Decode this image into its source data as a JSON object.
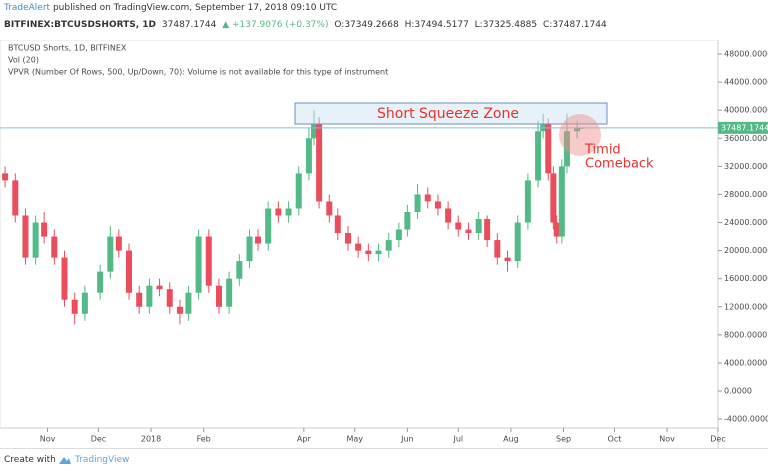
{
  "header": {
    "author": "TradeAlert",
    "published": "published on TradingView.com, September 17, 2018 09:10 UTC",
    "symbol": "BITFINEX:BTCUSDSHORTS, 1D",
    "last": "37487.1744",
    "change": "▲ +137.9076 (+0.37%)",
    "open": "O:37349.2668",
    "high": "H:37494.5177",
    "low": "L:37325.4885",
    "close": "C:37487.1744"
  },
  "footer": {
    "created": "Create with",
    "brand": "TradingView"
  },
  "chart_data": {
    "type": "candlestick",
    "title": "BTCUSD Shorts, 1D, BITFINEX",
    "legend_lines": [
      "Vol (20)",
      "VPVR (Number Of Rows, 500, Up/Down, 70): Volume is not available for this type of instrument"
    ],
    "up_color": "#53b987",
    "down_color": "#eb4d5c",
    "grid": false,
    "annotations": [
      "Short Squeeze Zone",
      "Timid",
      "Comeback"
    ],
    "xlim": [
      -3,
      420
    ],
    "xticks": [
      {
        "value": 25,
        "label": "Nov"
      },
      {
        "value": 55,
        "label": "Dec"
      },
      {
        "value": 86,
        "label": "2018"
      },
      {
        "value": 117,
        "label": "Feb"
      },
      {
        "value": 176,
        "label": "Apr"
      },
      {
        "value": 206,
        "label": "May"
      },
      {
        "value": 237,
        "label": "Jun"
      },
      {
        "value": 267,
        "label": "Jul"
      },
      {
        "value": 298,
        "label": "Aug"
      },
      {
        "value": 329,
        "label": "Sep"
      },
      {
        "value": 359,
        "label": "Oct"
      },
      {
        "value": 390,
        "label": "Nov"
      },
      {
        "value": 420,
        "label": "Dec"
      }
    ],
    "ylim": [
      -5270,
      50000
    ],
    "yticks": [
      {
        "value": -4000,
        "label": "-4000.0000"
      },
      {
        "value": 0,
        "label": "0.0000"
      },
      {
        "value": 4000,
        "label": "4000.0000"
      },
      {
        "value": 8000,
        "label": "8000.0000"
      },
      {
        "value": 12000,
        "label": "12000.0000"
      },
      {
        "value": 16000,
        "label": "16000.0000"
      },
      {
        "value": 20000,
        "label": "20000.0000"
      },
      {
        "value": 24000,
        "label": "24000.0000"
      },
      {
        "value": 28000,
        "label": "28000.0000"
      },
      {
        "value": 32000,
        "label": "32000.0000"
      },
      {
        "value": 36000,
        "label": "36000.0000"
      },
      {
        "value": 40000,
        "label": "40000.0000"
      },
      {
        "value": 44000,
        "label": "44000.0000"
      },
      {
        "value": 48000,
        "label": "48000.0000"
      }
    ],
    "x": [
      0,
      6,
      12,
      18,
      23,
      29,
      35,
      41,
      47,
      56,
      62,
      67,
      73,
      79,
      85,
      91,
      97,
      103,
      108,
      114,
      120,
      126,
      132,
      138,
      144,
      149,
      155,
      161,
      167,
      173,
      179,
      182,
      185,
      191,
      196,
      202,
      208,
      214,
      220,
      226,
      232,
      237,
      243,
      249,
      255,
      261,
      267,
      273,
      279,
      284,
      290,
      296,
      302,
      308,
      314,
      317,
      320,
      323,
      325,
      328,
      331,
      337,
      339
    ],
    "open": [
      31000,
      30000,
      25000,
      19000,
      24000,
      22000,
      19000,
      13000,
      11000,
      14000,
      17000,
      22000,
      20000,
      14000,
      12000,
      15000,
      14500,
      12000,
      11000,
      14000,
      22000,
      15000,
      12000,
      16000,
      18500,
      22000,
      21000,
      26000,
      25000,
      26000,
      31000,
      36000,
      38000,
      27000,
      25000,
      22500,
      21000,
      20000,
      19500,
      20000,
      21500,
      23000,
      25500,
      28000,
      27000,
      26000,
      24000,
      23000,
      22500,
      24500,
      21500,
      19000,
      18500,
      24000,
      30000,
      37000,
      38000,
      31000,
      24000,
      22000,
      32000,
      37000,
      37349.2668
    ],
    "high": [
      32000,
      31000,
      26000,
      25000,
      25500,
      23000,
      20000,
      14000,
      15000,
      18000,
      23500,
      23000,
      21000,
      15000,
      16000,
      16000,
      15500,
      13000,
      15000,
      23000,
      23000,
      16000,
      17000,
      19500,
      23000,
      23000,
      27000,
      27000,
      27000,
      32000,
      37500,
      40000,
      39000,
      28000,
      26000,
      23500,
      22000,
      21000,
      21000,
      22500,
      24000,
      26500,
      29500,
      29000,
      28000,
      27000,
      25000,
      24000,
      25500,
      25000,
      22500,
      20000,
      25000,
      31000,
      38500,
      39500,
      38800,
      32000,
      25000,
      33000,
      39500,
      38500,
      37494.5177
    ],
    "low": [
      29000,
      24000,
      18000,
      18000,
      21000,
      18000,
      12000,
      9500,
      10000,
      13000,
      16000,
      19000,
      13000,
      11000,
      11000,
      13500,
      11000,
      9500,
      10000,
      13000,
      14000,
      11000,
      11000,
      15000,
      17500,
      20000,
      20000,
      24000,
      24000,
      25000,
      30000,
      35000,
      26000,
      24000,
      21500,
      20000,
      19000,
      18500,
      18500,
      19000,
      20500,
      22000,
      24500,
      26000,
      25000,
      23000,
      22000,
      21500,
      21500,
      20500,
      18000,
      17000,
      17500,
      23000,
      29000,
      36000,
      30000,
      23000,
      21000,
      21000,
      31000,
      36000,
      37325.4885
    ],
    "close": [
      30000,
      25000,
      19000,
      24000,
      22000,
      19000,
      13000,
      11000,
      14000,
      17000,
      22000,
      20000,
      14000,
      12000,
      15000,
      14500,
      12000,
      11000,
      14000,
      22000,
      15000,
      12000,
      16000,
      18500,
      22000,
      21000,
      26000,
      25000,
      26000,
      31000,
      36000,
      38000,
      27000,
      25000,
      22500,
      21000,
      20000,
      19500,
      20000,
      21500,
      23000,
      25500,
      28000,
      27000,
      26000,
      24000,
      23000,
      22500,
      24500,
      21500,
      19000,
      18500,
      24000,
      30000,
      37000,
      38000,
      31000,
      24000,
      22000,
      32000,
      37000,
      37500,
      37487.1744
    ]
  }
}
